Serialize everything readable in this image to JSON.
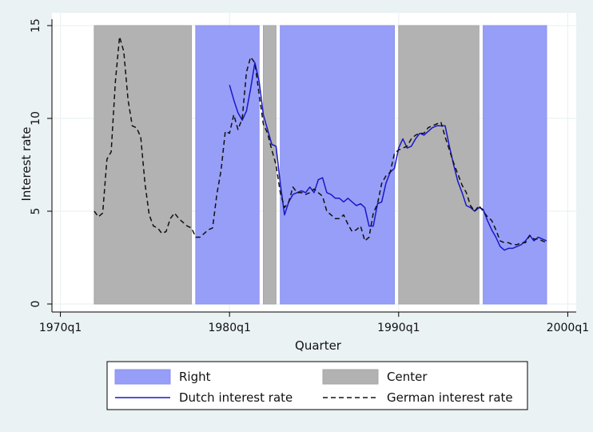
{
  "chart_data": {
    "type": "line",
    "title": "",
    "xlabel": "Quarter",
    "ylabel": "Interest rate",
    "xlim": [
      1969.5,
      2000.5
    ],
    "ylim": [
      0,
      15
    ],
    "x_ticks": [
      {
        "value": 1970,
        "label": "1970q1"
      },
      {
        "value": 1980,
        "label": "1980q1"
      },
      {
        "value": 1990,
        "label": "1990q1"
      },
      {
        "value": 2000,
        "label": "2000q1"
      }
    ],
    "y_ticks": [
      0,
      5,
      10,
      15
    ],
    "grid": true,
    "legend_position": "bottom",
    "shaded_periods": [
      {
        "name": "Center",
        "start": 1972.0,
        "end": 1977.75,
        "color": "#b2b2b2"
      },
      {
        "name": "Right",
        "start": 1978.0,
        "end": 1981.75,
        "color": "#979ef7"
      },
      {
        "name": "Center",
        "start": 1982.0,
        "end": 1982.75,
        "color": "#b2b2b2"
      },
      {
        "name": "Right",
        "start": 1983.0,
        "end": 1989.75,
        "color": "#979ef7"
      },
      {
        "name": "Center",
        "start": 1990.0,
        "end": 1994.75,
        "color": "#b2b2b2"
      },
      {
        "name": "Right",
        "start": 1995.0,
        "end": 1998.75,
        "color": "#979ef7"
      }
    ],
    "series": [
      {
        "name": "Dutch interest rate",
        "color": "#1a17c8",
        "dash": "solid",
        "points": [
          [
            1980.0,
            11.8
          ],
          [
            1980.25,
            11.0
          ],
          [
            1980.5,
            10.3
          ],
          [
            1980.75,
            9.9
          ],
          [
            1981.0,
            10.4
          ],
          [
            1981.25,
            11.6
          ],
          [
            1981.5,
            13.0
          ],
          [
            1981.75,
            12.0
          ],
          [
            1982.0,
            10.2
          ],
          [
            1982.25,
            9.4
          ],
          [
            1982.5,
            8.6
          ],
          [
            1982.75,
            8.5
          ],
          [
            1983.0,
            6.5
          ],
          [
            1983.25,
            4.8
          ],
          [
            1983.5,
            5.5
          ],
          [
            1983.75,
            5.9
          ],
          [
            1984.0,
            6.0
          ],
          [
            1984.25,
            6.1
          ],
          [
            1984.5,
            6.0
          ],
          [
            1984.75,
            6.3
          ],
          [
            1985.0,
            6.0
          ],
          [
            1985.25,
            6.7
          ],
          [
            1985.5,
            6.8
          ],
          [
            1985.75,
            6.0
          ],
          [
            1986.0,
            5.9
          ],
          [
            1986.25,
            5.7
          ],
          [
            1986.5,
            5.7
          ],
          [
            1986.75,
            5.5
          ],
          [
            1987.0,
            5.7
          ],
          [
            1987.25,
            5.5
          ],
          [
            1987.5,
            5.3
          ],
          [
            1987.75,
            5.4
          ],
          [
            1988.0,
            5.2
          ],
          [
            1988.25,
            4.2
          ],
          [
            1988.5,
            4.2
          ],
          [
            1988.75,
            5.4
          ],
          [
            1989.0,
            5.5
          ],
          [
            1989.25,
            6.5
          ],
          [
            1989.5,
            7.1
          ],
          [
            1989.75,
            7.3
          ],
          [
            1990.0,
            8.4
          ],
          [
            1990.25,
            8.9
          ],
          [
            1990.5,
            8.4
          ],
          [
            1990.75,
            8.5
          ],
          [
            1991.0,
            8.9
          ],
          [
            1991.25,
            9.2
          ],
          [
            1991.5,
            9.1
          ],
          [
            1991.75,
            9.3
          ],
          [
            1992.0,
            9.5
          ],
          [
            1992.25,
            9.6
          ],
          [
            1992.5,
            9.6
          ],
          [
            1992.75,
            9.6
          ],
          [
            1993.0,
            8.5
          ],
          [
            1993.25,
            7.5
          ],
          [
            1993.5,
            6.6
          ],
          [
            1993.75,
            6.0
          ],
          [
            1994.0,
            5.3
          ],
          [
            1994.25,
            5.2
          ],
          [
            1994.5,
            5.0
          ],
          [
            1994.75,
            5.2
          ],
          [
            1995.0,
            5.1
          ],
          [
            1995.25,
            4.5
          ],
          [
            1995.5,
            4.0
          ],
          [
            1995.75,
            3.6
          ],
          [
            1996.0,
            3.1
          ],
          [
            1996.25,
            2.9
          ],
          [
            1996.5,
            3.0
          ],
          [
            1996.75,
            3.0
          ],
          [
            1997.0,
            3.1
          ],
          [
            1997.25,
            3.2
          ],
          [
            1997.5,
            3.4
          ],
          [
            1997.75,
            3.7
          ],
          [
            1998.0,
            3.4
          ],
          [
            1998.25,
            3.6
          ],
          [
            1998.5,
            3.5
          ],
          [
            1998.75,
            3.4
          ]
        ]
      },
      {
        "name": "German interest rate",
        "color": "#111111",
        "dash": "dashed",
        "points": [
          [
            1972.0,
            5.0
          ],
          [
            1972.25,
            4.7
          ],
          [
            1972.5,
            4.9
          ],
          [
            1972.75,
            7.8
          ],
          [
            1973.0,
            8.2
          ],
          [
            1973.25,
            12.0
          ],
          [
            1973.5,
            14.4
          ],
          [
            1973.75,
            13.6
          ],
          [
            1974.0,
            11.0
          ],
          [
            1974.25,
            9.6
          ],
          [
            1974.5,
            9.5
          ],
          [
            1974.75,
            9.0
          ],
          [
            1975.0,
            6.5
          ],
          [
            1975.25,
            4.8
          ],
          [
            1975.5,
            4.2
          ],
          [
            1975.75,
            4.1
          ],
          [
            1976.0,
            3.8
          ],
          [
            1976.25,
            3.9
          ],
          [
            1976.5,
            4.6
          ],
          [
            1976.75,
            4.9
          ],
          [
            1977.0,
            4.6
          ],
          [
            1977.25,
            4.4
          ],
          [
            1977.5,
            4.2
          ],
          [
            1977.75,
            4.1
          ],
          [
            1978.0,
            3.6
          ],
          [
            1978.25,
            3.6
          ],
          [
            1978.5,
            3.8
          ],
          [
            1978.75,
            4.0
          ],
          [
            1979.0,
            4.1
          ],
          [
            1979.25,
            5.9
          ],
          [
            1979.5,
            7.2
          ],
          [
            1979.75,
            9.3
          ],
          [
            1980.0,
            9.2
          ],
          [
            1980.25,
            10.2
          ],
          [
            1980.5,
            9.4
          ],
          [
            1980.75,
            10.0
          ],
          [
            1981.0,
            12.5
          ],
          [
            1981.25,
            13.3
          ],
          [
            1981.5,
            13.0
          ],
          [
            1981.75,
            11.3
          ],
          [
            1982.0,
            9.7
          ],
          [
            1982.25,
            9.2
          ],
          [
            1982.5,
            8.3
          ],
          [
            1982.75,
            7.5
          ],
          [
            1983.0,
            6.0
          ],
          [
            1983.25,
            5.2
          ],
          [
            1983.5,
            5.5
          ],
          [
            1983.75,
            6.3
          ],
          [
            1984.0,
            6.0
          ],
          [
            1984.25,
            6.0
          ],
          [
            1984.5,
            5.9
          ],
          [
            1984.75,
            6.0
          ],
          [
            1985.0,
            6.2
          ],
          [
            1985.25,
            6.0
          ],
          [
            1985.5,
            5.8
          ],
          [
            1985.75,
            5.0
          ],
          [
            1986.0,
            4.8
          ],
          [
            1986.25,
            4.6
          ],
          [
            1986.5,
            4.6
          ],
          [
            1986.75,
            4.8
          ],
          [
            1987.0,
            4.3
          ],
          [
            1987.25,
            3.9
          ],
          [
            1987.5,
            4.0
          ],
          [
            1987.75,
            4.2
          ],
          [
            1988.0,
            3.4
          ],
          [
            1988.25,
            3.6
          ],
          [
            1988.5,
            4.9
          ],
          [
            1988.75,
            5.4
          ],
          [
            1989.0,
            6.5
          ],
          [
            1989.25,
            6.9
          ],
          [
            1989.5,
            7.1
          ],
          [
            1989.75,
            8.1
          ],
          [
            1990.0,
            8.3
          ],
          [
            1990.25,
            8.4
          ],
          [
            1990.5,
            8.5
          ],
          [
            1990.75,
            8.9
          ],
          [
            1991.0,
            9.1
          ],
          [
            1991.25,
            9.2
          ],
          [
            1991.5,
            9.2
          ],
          [
            1991.75,
            9.5
          ],
          [
            1992.0,
            9.6
          ],
          [
            1992.25,
            9.7
          ],
          [
            1992.5,
            9.8
          ],
          [
            1992.75,
            9.0
          ],
          [
            1993.0,
            8.3
          ],
          [
            1993.25,
            7.6
          ],
          [
            1993.5,
            7.0
          ],
          [
            1993.75,
            6.4
          ],
          [
            1994.0,
            6.0
          ],
          [
            1994.25,
            5.3
          ],
          [
            1994.5,
            5.0
          ],
          [
            1994.75,
            5.3
          ],
          [
            1995.0,
            5.0
          ],
          [
            1995.25,
            4.7
          ],
          [
            1995.5,
            4.5
          ],
          [
            1995.75,
            4.0
          ],
          [
            1996.0,
            3.4
          ],
          [
            1996.25,
            3.3
          ],
          [
            1996.5,
            3.3
          ],
          [
            1996.75,
            3.2
          ],
          [
            1997.0,
            3.2
          ],
          [
            1997.25,
            3.3
          ],
          [
            1997.5,
            3.3
          ],
          [
            1997.75,
            3.7
          ],
          [
            1998.0,
            3.5
          ],
          [
            1998.25,
            3.5
          ],
          [
            1998.5,
            3.4
          ],
          [
            1998.75,
            3.3
          ]
        ]
      }
    ],
    "legend": [
      {
        "label": "Right",
        "kind": "box",
        "color": "#979ef7"
      },
      {
        "label": "Center",
        "kind": "box",
        "color": "#b2b2b2"
      },
      {
        "label": "Dutch interest rate",
        "kind": "line",
        "color": "#1a17c8",
        "dash": "solid"
      },
      {
        "label": "German interest rate",
        "kind": "line",
        "color": "#111111",
        "dash": "dashed"
      }
    ]
  }
}
